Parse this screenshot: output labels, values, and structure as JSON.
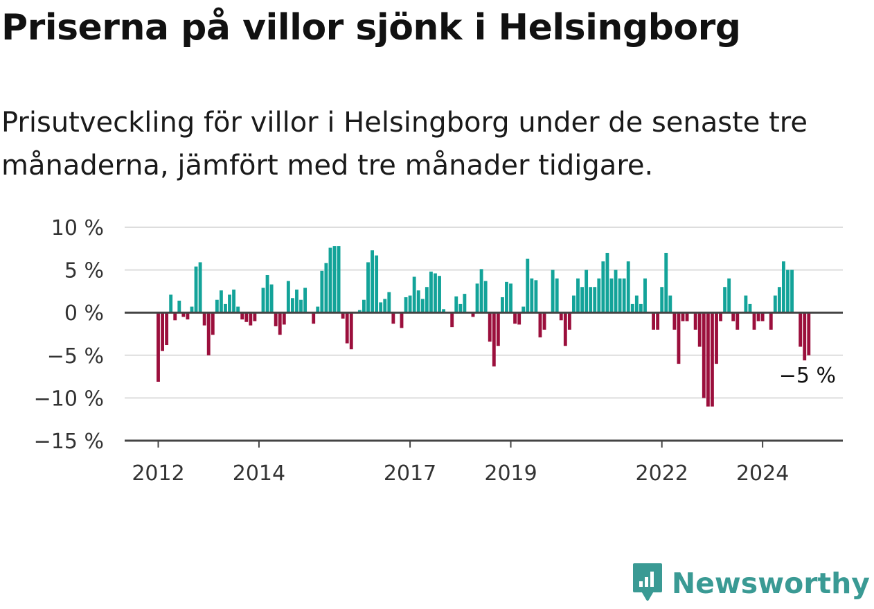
{
  "title": "Priserna på villor sjönk i Helsingborg",
  "subtitle": "Prisutveckling för villor i Helsingborg under de senaste tre månaderna, jämfört med tre månader tidigare.",
  "brand": {
    "name": "Newsworthy",
    "icon": "chart-badge-icon"
  },
  "colors": {
    "positive": "#13a399",
    "negative": "#9b0f3c",
    "grid": "#dddddd",
    "axis": "#444444"
  },
  "chart_data": {
    "type": "bar",
    "title": "Priserna på villor sjönk i Helsingborg",
    "subtitle": "Prisutveckling för villor i Helsingborg under de senaste tre månaderna, jämfört med tre månader tidigare.",
    "x_unit": "month",
    "x_start": "2012-01",
    "ylim": [
      -15,
      10
    ],
    "yticks": [
      10,
      5,
      0,
      -5,
      -10,
      -15
    ],
    "ytick_labels": [
      "10 %",
      "5 %",
      "0 %",
      "−5 %",
      "−10 %",
      "−15 %"
    ],
    "xticks": [
      "2012-01",
      "2014-01",
      "2017-01",
      "2019-01",
      "2022-01",
      "2024-01"
    ],
    "xtick_labels": [
      "2012",
      "2014",
      "2017",
      "2019",
      "2022",
      "2024"
    ],
    "grid": true,
    "end_label": "−5 %",
    "values": [
      -8.1,
      -4.5,
      -3.8,
      2.1,
      -0.9,
      1.4,
      -0.5,
      -0.8,
      0.7,
      5.4,
      5.9,
      -1.5,
      -5.0,
      -2.6,
      1.5,
      2.6,
      1.0,
      2.1,
      2.7,
      0.7,
      -0.8,
      -1.1,
      -1.5,
      -1.0,
      0.0,
      2.9,
      4.4,
      3.3,
      -1.6,
      -2.6,
      -1.4,
      3.7,
      1.7,
      2.7,
      1.5,
      2.9,
      0.0,
      -1.3,
      0.7,
      4.9,
      5.8,
      7.6,
      7.8,
      7.8,
      -0.7,
      -3.6,
      -4.3,
      0.0,
      0.3,
      1.5,
      5.9,
      7.3,
      6.7,
      1.2,
      1.6,
      2.4,
      -1.3,
      0.0,
      -1.8,
      1.8,
      2.0,
      4.2,
      2.6,
      1.6,
      3.0,
      4.8,
      4.6,
      4.3,
      0.4,
      0.0,
      -1.7,
      1.9,
      1.0,
      2.2,
      0.0,
      -0.5,
      3.4,
      5.1,
      3.7,
      -3.4,
      -6.3,
      -3.9,
      1.8,
      3.6,
      3.4,
      -1.3,
      -1.4,
      0.7,
      6.3,
      4.0,
      3.8,
      -2.9,
      -2.0,
      0.0,
      5.0,
      4.0,
      -0.9,
      -3.9,
      -2.0,
      2.0,
      4.0,
      3.0,
      5.0,
      3.0,
      3.0,
      4.0,
      6.0,
      7.0,
      4.0,
      5.0,
      4.0,
      4.0,
      6.0,
      1.0,
      2.0,
      1.0,
      4.0,
      0.0,
      -2.0,
      -2.0,
      3.0,
      7.0,
      2.0,
      -2.0,
      -6.0,
      -1.0,
      -1.0,
      0.0,
      -2.0,
      -4.0,
      -10.0,
      -11.0,
      -11.0,
      -6.0,
      -1.0,
      3.0,
      4.0,
      -1.0,
      -2.0,
      0.0,
      2.0,
      1.0,
      -2.0,
      -1.0,
      -1.0,
      0.0,
      -2.0,
      2.0,
      3.0,
      6.0,
      5.0,
      5.0,
      0.0,
      -4.0,
      -5.6,
      -5.0
    ]
  }
}
